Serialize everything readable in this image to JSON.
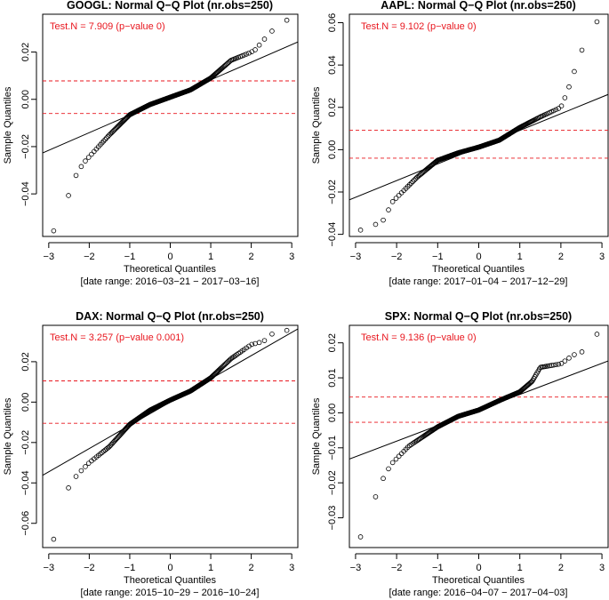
{
  "chart_data": [
    {
      "type": "scatter",
      "ticker": "GOOGL",
      "title": "GOOGL: Normal Q−Q Plot (nr.obs=250)",
      "test_label": "Test.N = 7.909 (p−value 0)",
      "xlabel": "Theoretical Quantiles",
      "date_range": "[date range: 2016−03−21 − 2017−03−16]",
      "ylabel": "Sample Quantiles",
      "xlim": [
        -3.15,
        3.15
      ],
      "ylim": [
        -0.058,
        0.036
      ],
      "x_ticks": [
        -3,
        -2,
        -1,
        0,
        1,
        2,
        3
      ],
      "x_tick_labels": [
        "−3",
        "−2",
        "−1",
        "0",
        "1",
        "2",
        "3"
      ],
      "y_ticks": [
        -0.04,
        -0.02,
        0.0,
        0.02
      ],
      "y_tick_labels": [
        "−0.04",
        "−0.02",
        "0.00",
        "0.02"
      ],
      "qq_line": {
        "intercept": 0.0008,
        "slope": 0.00745
      },
      "hlines": [
        0.0078,
        -0.006
      ],
      "n_obs": 250,
      "quantile_knots": {
        "x": [
          -2.88,
          -2.53,
          -2.3,
          -2.12,
          -1.5,
          -1.0,
          -0.5,
          0,
          0.5,
          1.0,
          1.5,
          1.98,
          2.1,
          2.3,
          2.53,
          2.88
        ],
        "y": [
          -0.0557,
          -0.0415,
          -0.031,
          -0.0265,
          -0.015,
          -0.0065,
          -0.0022,
          0.0009,
          0.004,
          0.009,
          0.0165,
          0.0198,
          0.021,
          0.025,
          0.0292,
          0.0335
        ]
      }
    },
    {
      "type": "scatter",
      "ticker": "AAPL",
      "title": "AAPL: Normal Q−Q Plot (nr.obs=250)",
      "test_label": "Test.N = 9.102 (p−value 0)",
      "xlabel": "Theoretical Quantiles",
      "date_range": "[date range: 2017−01−04 − 2017−12−29]",
      "ylabel": "Sample Quantiles",
      "xlim": [
        -3.15,
        3.15
      ],
      "ylim": [
        -0.041,
        0.064
      ],
      "x_ticks": [
        -3,
        -2,
        -1,
        0,
        1,
        2,
        3
      ],
      "x_tick_labels": [
        "−3",
        "−2",
        "−1",
        "0",
        "1",
        "2",
        "3"
      ],
      "y_ticks": [
        -0.04,
        -0.02,
        0.0,
        0.02,
        0.04,
        0.06
      ],
      "y_tick_labels": [
        "−0.04",
        "−0.02",
        "0.00",
        "0.02",
        "0.04",
        "0.06"
      ],
      "qq_line": {
        "intercept": 0.0012,
        "slope": 0.0079
      },
      "hlines": [
        0.0092,
        -0.004
      ],
      "n_obs": 250,
      "quantile_knots": {
        "x": [
          -2.88,
          -2.53,
          -2.3,
          -2.12,
          -1.5,
          -1.0,
          -0.5,
          0,
          0.5,
          1.0,
          1.5,
          2.0,
          2.15,
          2.3,
          2.53,
          2.88
        ],
        "y": [
          -0.038,
          -0.0355,
          -0.033,
          -0.025,
          -0.013,
          -0.005,
          -0.0015,
          0.0012,
          0.0045,
          0.0105,
          0.0155,
          0.02,
          0.027,
          0.0355,
          0.048,
          0.0605
        ]
      }
    },
    {
      "type": "scatter",
      "ticker": "DAX",
      "title": "DAX: Normal Q−Q Plot (nr.obs=250)",
      "test_label": "Test.N = 3.257 (p−value 0.001)",
      "xlabel": "Theoretical Quantiles",
      "date_range": "[date range: 2015−10−29 − 2016−10−24]",
      "ylabel": "Sample Quantiles",
      "xlim": [
        -3.15,
        3.15
      ],
      "ylim": [
        -0.072,
        0.038
      ],
      "x_ticks": [
        -3,
        -2,
        -1,
        0,
        1,
        2,
        3
      ],
      "x_tick_labels": [
        "−3",
        "−2",
        "−1",
        "0",
        "1",
        "2",
        "3"
      ],
      "y_ticks": [
        -0.06,
        -0.04,
        -0.02,
        0.0,
        0.02
      ],
      "y_tick_labels": [
        "−0.06",
        "−0.04",
        "−0.02",
        "0.00",
        "0.02"
      ],
      "qq_line": {
        "intercept": 0.0,
        "slope": 0.0115
      },
      "hlines": [
        0.0105,
        -0.0105
      ],
      "n_obs": 250,
      "quantile_knots": {
        "x": [
          -2.88,
          -2.53,
          -2.3,
          -2.0,
          -1.5,
          -1.0,
          -0.5,
          0,
          0.5,
          1.0,
          1.5,
          2.0,
          2.3,
          2.53,
          2.88
        ],
        "y": [
          -0.068,
          -0.043,
          -0.036,
          -0.03,
          -0.022,
          -0.011,
          -0.004,
          0.001,
          0.0055,
          0.012,
          0.0215,
          0.0285,
          0.03,
          0.034,
          0.0355
        ]
      }
    },
    {
      "type": "scatter",
      "ticker": "SPX",
      "title": "SPX: Normal Q−Q Plot (nr.obs=250)",
      "test_label": "Test.N = 9.136 (p−value 0)",
      "xlabel": "Theoretical Quantiles",
      "date_range": "[date range: 2016−04−07 − 2017−04−03]",
      "ylabel": "Sample Quantiles",
      "xlim": [
        -3.15,
        3.15
      ],
      "ylim": [
        -0.0385,
        0.025
      ],
      "x_ticks": [
        -3,
        -2,
        -1,
        0,
        1,
        2,
        3
      ],
      "x_tick_labels": [
        "−3",
        "−2",
        "−1",
        "0",
        "1",
        "2",
        "3"
      ],
      "y_ticks": [
        -0.03,
        -0.02,
        -0.01,
        0.0,
        0.01,
        0.02
      ],
      "y_tick_labels": [
        "−0.03",
        "−0.02",
        "−0.01",
        "0.00",
        "0.01",
        "0.02"
      ],
      "qq_line": {
        "intercept": 0.0008,
        "slope": 0.00445
      },
      "hlines": [
        0.0045,
        -0.0027
      ],
      "n_obs": 250,
      "quantile_knots": {
        "x": [
          -2.88,
          -2.53,
          -2.3,
          -2.12,
          -1.7,
          -1.0,
          -0.5,
          0,
          0.5,
          1.0,
          1.3,
          1.5,
          2.0,
          2.3,
          2.53,
          2.88
        ],
        "y": [
          -0.0355,
          -0.0245,
          -0.018,
          -0.0145,
          -0.0095,
          -0.004,
          -0.001,
          0.0008,
          0.0035,
          0.006,
          0.009,
          0.013,
          0.014,
          0.0165,
          0.0175,
          0.0225
        ]
      }
    }
  ]
}
